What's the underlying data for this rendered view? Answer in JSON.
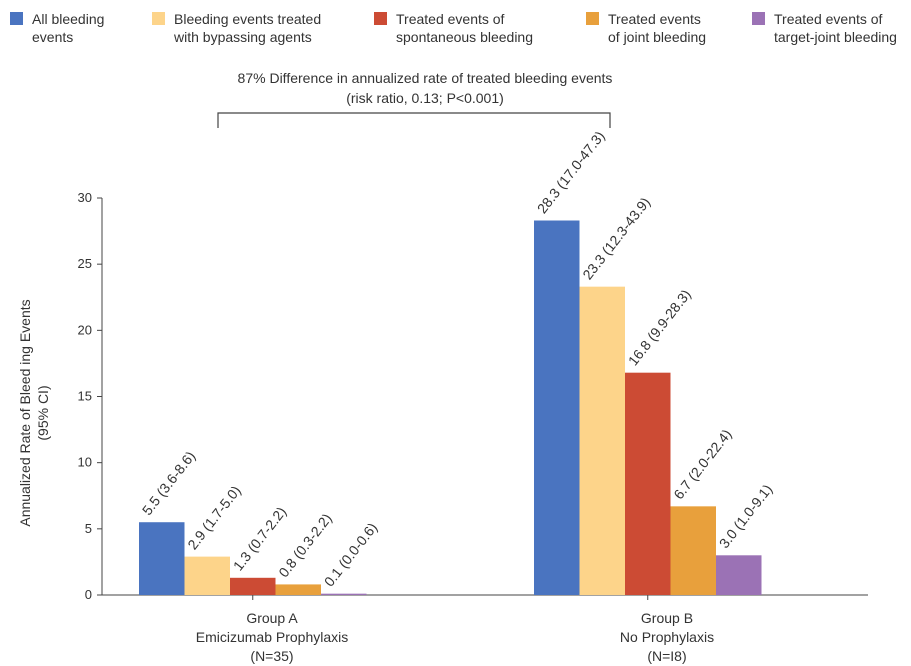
{
  "legend": [
    {
      "label": "All bleeding\nevents",
      "color": "#4a74c0"
    },
    {
      "label": "Bleeding events treated\nwith bypassing agents",
      "color": "#fdd48a"
    },
    {
      "label": "Treated events of\nspontaneous bleeding",
      "color": "#cc4b34"
    },
    {
      "label": "Treated events\nof joint bleeding",
      "color": "#e8a03c"
    },
    {
      "label": "Treated events of\ntarget-joint bleeding",
      "color": "#9b72b5"
    }
  ],
  "annotation": {
    "line1": "87% Difference in annualized rate of treated bleeding events",
    "line2": "(risk ratio, 0.13; P<0.001)"
  },
  "chart_data": {
    "type": "bar",
    "ylabel_line1": "Annualized Rate of Bleed ing Events",
    "ylabel_line2": "(95% CI)",
    "ylim": [
      0,
      30
    ],
    "yticks": [
      "0",
      "5",
      "10",
      "15",
      "20",
      "25",
      "30"
    ],
    "grid": false,
    "legend_position": "top",
    "groups": [
      {
        "label_line1": "Group A",
        "label_line2": "Emicizumab Prophylaxis",
        "label_line3": "(N=35)"
      },
      {
        "label_line1": "Group B",
        "label_line2": "No Prophylaxis",
        "label_line3": "(N=I8)"
      }
    ],
    "series": [
      {
        "name": "All bleeding events",
        "color": "#4a74c0",
        "values": [
          5.5,
          28.3
        ],
        "labels": [
          "5.5 (3.6-8.6)",
          "28.3 (17.0-47.3)"
        ]
      },
      {
        "name": "Bleeding events treated with bypassing agents",
        "color": "#fdd48a",
        "values": [
          2.9,
          23.3
        ],
        "labels": [
          "2.9 (1.7-5.0)",
          "23.3 (12.3-43.9)"
        ]
      },
      {
        "name": "Treated events of spontaneous bleeding",
        "color": "#cc4b34",
        "values": [
          1.3,
          16.8
        ],
        "labels": [
          "1.3 (0.7-2.2)",
          "16.8 (9.9-28.3)"
        ]
      },
      {
        "name": "Treated events of joint bleeding",
        "color": "#e8a03c",
        "values": [
          0.8,
          6.7
        ],
        "labels": [
          "0.8 (0.3-2.2)",
          "6.7 (2.0-22.4)"
        ]
      },
      {
        "name": "Treated events of target-joint bleeding",
        "color": "#9b72b5",
        "values": [
          0.1,
          3.0
        ],
        "labels": [
          "0.1 (0.0-0.6)",
          "3.0 (1.0-9.1)"
        ]
      }
    ]
  }
}
